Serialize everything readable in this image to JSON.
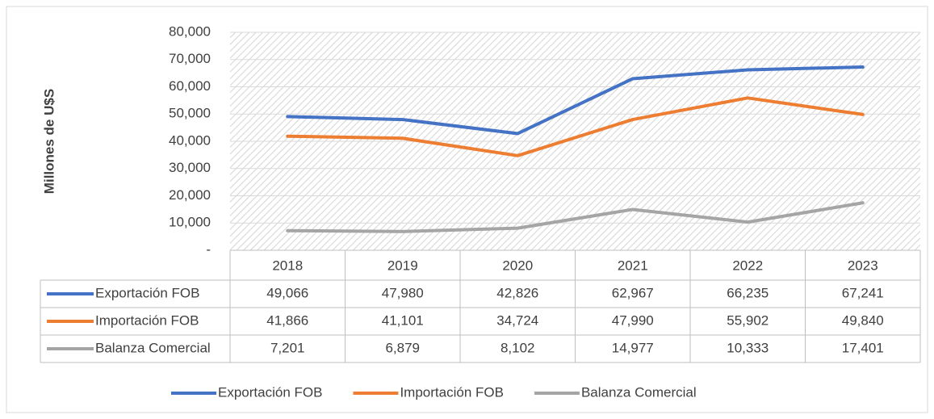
{
  "chart_data": {
    "type": "line",
    "y_label": "Millones de U$S",
    "categories": [
      "2018",
      "2019",
      "2020",
      "2021",
      "2022",
      "2023"
    ],
    "series": [
      {
        "name": "Exportación FOB",
        "color": "#4472c4",
        "values": [
          49066,
          47980,
          42826,
          62967,
          66235,
          67241
        ],
        "value_labels": [
          "49,066",
          "47,980",
          "42,826",
          "62,967",
          "66,235",
          "67,241"
        ]
      },
      {
        "name": "Importación FOB",
        "color": "#ed7d31",
        "values": [
          41866,
          41101,
          34724,
          47990,
          55902,
          49840
        ],
        "value_labels": [
          "41,866",
          "41,101",
          "34,724",
          "47,990",
          "55,902",
          "49,840"
        ]
      },
      {
        "name": "Balanza Comercial",
        "color": "#a5a5a5",
        "values": [
          7201,
          6879,
          8102,
          14977,
          10333,
          17401
        ],
        "value_labels": [
          "7,201",
          "6,879",
          "8,102",
          "14,977",
          "10,333",
          "17,401"
        ]
      }
    ],
    "ylim": [
      0,
      80000
    ],
    "yticks": [
      {
        "value": 0,
        "label": "-"
      },
      {
        "value": 10000,
        "label": "10,000"
      },
      {
        "value": 20000,
        "label": "20,000"
      },
      {
        "value": 30000,
        "label": "30,000"
      },
      {
        "value": 40000,
        "label": "40,000"
      },
      {
        "value": 50000,
        "label": "50,000"
      },
      {
        "value": 60000,
        "label": "60,000"
      },
      {
        "value": 70000,
        "label": "70,000"
      },
      {
        "value": 80000,
        "label": "80,000"
      }
    ],
    "grid": true,
    "legend": "bottom"
  }
}
